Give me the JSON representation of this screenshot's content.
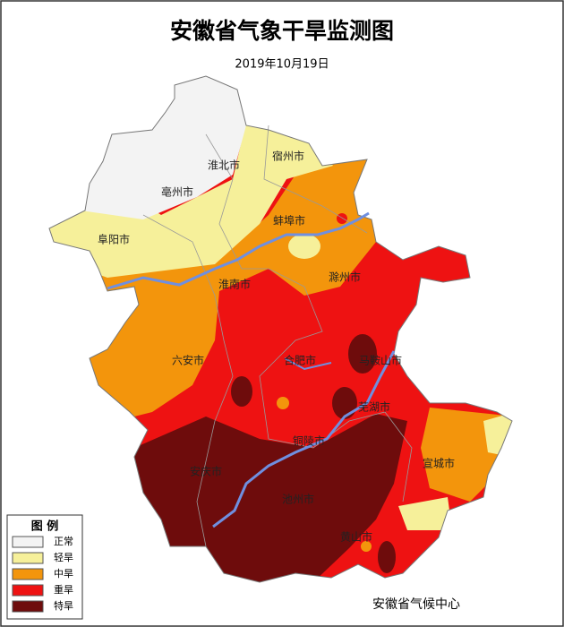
{
  "header": {
    "title": "安徽省气象干旱监测图",
    "date": "2019年10月19日"
  },
  "legend": {
    "title": "图 例",
    "items": [
      {
        "label": "正常",
        "color": "#f3f3f3"
      },
      {
        "label": "轻旱",
        "color": "#f6f09a"
      },
      {
        "label": "中旱",
        "color": "#f3950c"
      },
      {
        "label": "重旱",
        "color": "#ee1212"
      },
      {
        "label": "特旱",
        "color": "#6e0c0c"
      }
    ]
  },
  "cities": [
    "淮北市",
    "宿州市",
    "亳州市",
    "阜阳市",
    "蚌埠市",
    "淮南市",
    "滁州市",
    "六安市",
    "合肥市",
    "马鞍山市",
    "芜湖市",
    "铜陵市",
    "宣城市",
    "安庆市",
    "池州市",
    "黄山市"
  ],
  "footer": {
    "source": "安徽省气候中心"
  }
}
